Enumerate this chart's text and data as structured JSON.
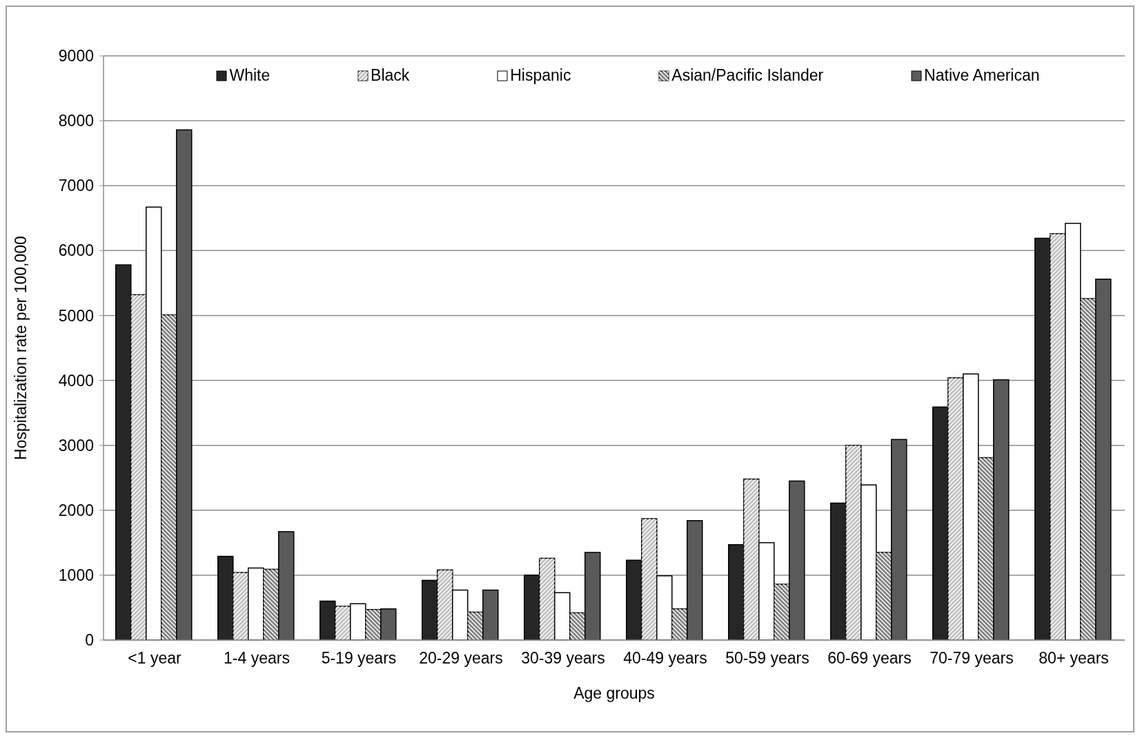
{
  "chart_data": {
    "type": "bar",
    "xlabel": "Age groups",
    "ylabel": "Hospitalization rate per 100,000",
    "categories": [
      "<1 year",
      "1-4 years",
      "5-19 years",
      "20-29 years",
      "30-39 years",
      "40-49 years",
      "50-59 years",
      "60-69 years",
      "70-79 years",
      "80+ years"
    ],
    "series": [
      {
        "name": "White",
        "color": "#262626",
        "values": [
          5780,
          1290,
          600,
          920,
          1000,
          1230,
          1470,
          2110,
          3590,
          6190
        ]
      },
      {
        "name": "Black",
        "color": "#bfbfbf",
        "values": [
          5320,
          1040,
          520,
          1080,
          1260,
          1870,
          2480,
          3000,
          4040,
          6260
        ]
      },
      {
        "name": "Hispanic",
        "color": "#ffffff",
        "values": [
          6670,
          1110,
          560,
          770,
          730,
          990,
          1500,
          2390,
          4100,
          6420
        ]
      },
      {
        "name": "Asian/Pacific Islander",
        "color": "#7f7f7f",
        "values": [
          5010,
          1090,
          470,
          430,
          420,
          480,
          860,
          1350,
          2810,
          5260
        ]
      },
      {
        "name": "Native American",
        "color": "#5a5a5a",
        "values": [
          7860,
          1670,
          480,
          770,
          1350,
          1840,
          2450,
          3090,
          4010,
          5560
        ]
      }
    ],
    "ylim": [
      0,
      9000
    ],
    "yticks": [
      0,
      1000,
      2000,
      3000,
      4000,
      5000,
      6000,
      7000,
      8000,
      9000
    ],
    "grid": "y",
    "legend": "top"
  }
}
